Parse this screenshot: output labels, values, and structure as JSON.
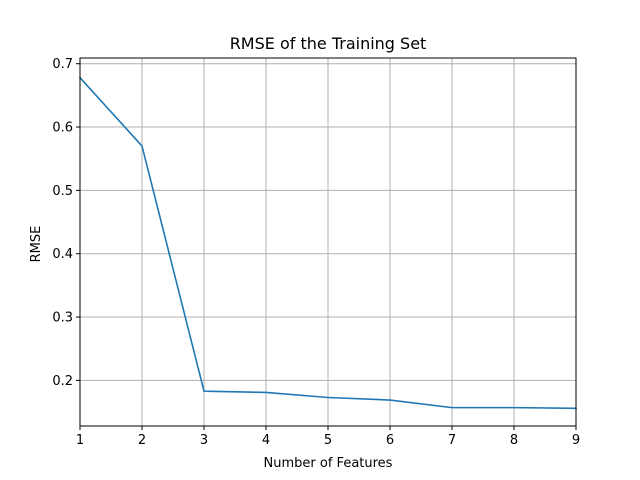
{
  "chart_data": {
    "type": "line",
    "title": "RMSE of the Training Set",
    "xlabel": "Number of Features",
    "ylabel": "RMSE",
    "x": [
      1,
      2,
      3,
      4,
      5,
      6,
      7,
      8,
      9
    ],
    "series": [
      {
        "values": [
          0.678,
          0.57,
          0.183,
          0.181,
          0.173,
          0.169,
          0.157,
          0.157,
          0.156
        ]
      }
    ],
    "xlim": [
      1,
      9
    ],
    "ylim": [
      0.128,
      0.709
    ],
    "xticks": [
      "1",
      "2",
      "3",
      "4",
      "5",
      "6",
      "7",
      "8",
      "9"
    ],
    "yticks": [
      "0.2",
      "0.3",
      "0.4",
      "0.5",
      "0.6",
      "0.7"
    ],
    "grid": true,
    "line_color": "#1f77b4",
    "grid_color": "#b0b0b0"
  }
}
